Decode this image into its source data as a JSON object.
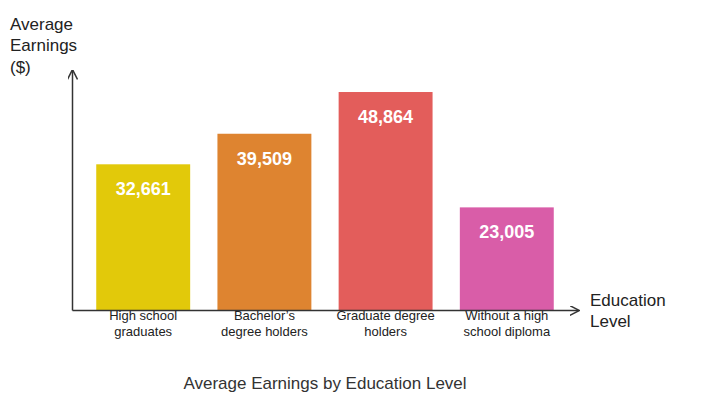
{
  "chart_data": {
    "type": "bar",
    "title": "Average Earnings by Education Level",
    "x_label": "Education Level",
    "y_label": "Average Earnings ($)",
    "categories": [
      "High school graduates",
      "Bachelor’s degree holders",
      "Graduate degree holders",
      "Without a high school diploma"
    ],
    "values": [
      32661,
      39509,
      48864,
      23005
    ],
    "value_labels": [
      "32,661",
      "39,509",
      "48,864",
      "23,005"
    ],
    "colors": [
      "#e2c90a",
      "#de8430",
      "#e35d5b",
      "#d95da8"
    ],
    "ylim": [
      0,
      53800
    ],
    "yticks": [],
    "grid": false,
    "data_labels": true,
    "tick_labels": "x"
  }
}
